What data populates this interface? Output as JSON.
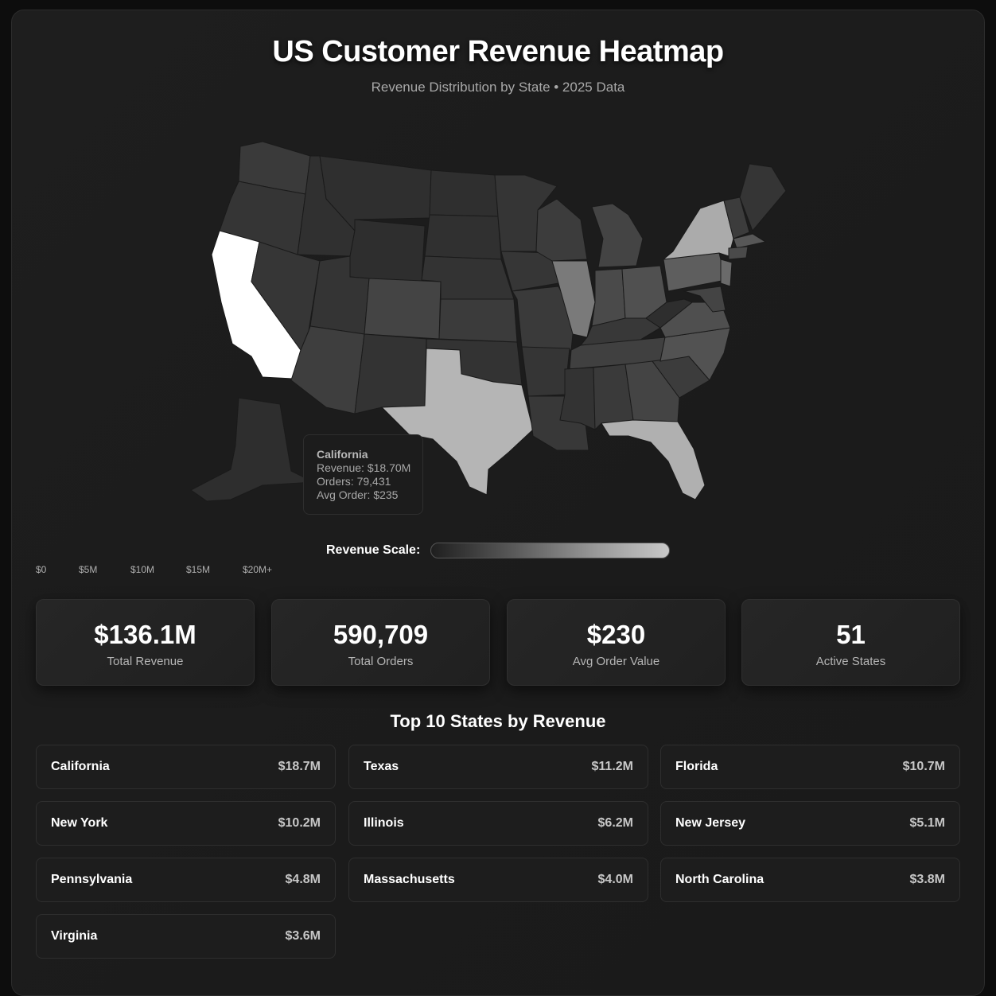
{
  "header": {
    "title": "US Customer Revenue Heatmap",
    "subtitle": "Revenue Distribution by State • 2025 Data"
  },
  "tooltip": {
    "state": "California",
    "revenue": "Revenue: $18.70M",
    "orders": "Orders: 79,431",
    "avg_order": "Avg Order: $235"
  },
  "scale": {
    "label": "Revenue Scale:",
    "ticks": [
      "$0",
      "$5M",
      "$10M",
      "$15M",
      "$20M+"
    ],
    "colors": {
      "low": "#1f1f1f",
      "high": "#ffffff"
    }
  },
  "stats": [
    {
      "value": "$136.1M",
      "label": "Total Revenue"
    },
    {
      "value": "590,709",
      "label": "Total Orders"
    },
    {
      "value": "$230",
      "label": "Avg Order Value"
    },
    {
      "value": "51",
      "label": "Active States"
    }
  ],
  "top_states": {
    "title": "Top 10 States by Revenue",
    "items": [
      {
        "name": "California",
        "revenue": "$18.7M"
      },
      {
        "name": "Texas",
        "revenue": "$11.2M"
      },
      {
        "name": "Florida",
        "revenue": "$10.7M"
      },
      {
        "name": "New York",
        "revenue": "$10.2M"
      },
      {
        "name": "Illinois",
        "revenue": "$6.2M"
      },
      {
        "name": "New Jersey",
        "revenue": "$5.1M"
      },
      {
        "name": "Pennsylvania",
        "revenue": "$4.8M"
      },
      {
        "name": "Massachusetts",
        "revenue": "$4.0M"
      },
      {
        "name": "North Carolina",
        "revenue": "$3.8M"
      },
      {
        "name": "Virginia",
        "revenue": "$3.6M"
      }
    ]
  },
  "state_shades": {
    "California": "#ffffff",
    "Texas": "#b5b5b5",
    "Florida": "#b0b0b0",
    "New York": "#ababab",
    "Illinois": "#7a7a7a",
    "New Jersey": "#6a6a6a",
    "Pennsylvania": "#5e5e5e",
    "Massachusetts": "#575757",
    "North Carolina": "#525252",
    "Virginia": "#4f4f4f",
    "default": "#333333"
  }
}
